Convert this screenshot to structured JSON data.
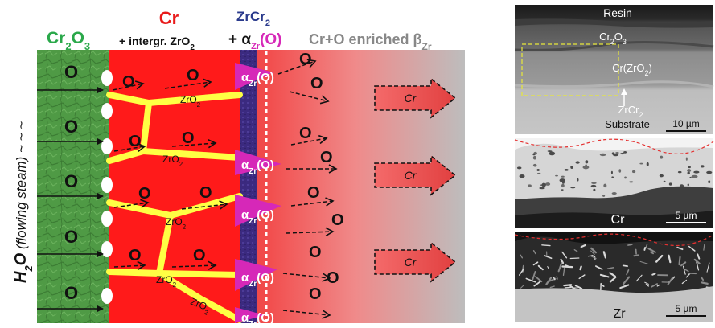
{
  "schematic": {
    "headers": {
      "oxide": {
        "main": "Cr",
        "sub": "2",
        "main2": "O",
        "sub2": "3"
      },
      "cr": {
        "line1": "Cr",
        "line2_prefix": "+ intergr. ZrO",
        "line2_sub": "2"
      },
      "zrcr2": {
        "main": "ZrCr",
        "sub": "2",
        "line2_prefix": "+ α",
        "line2_sub": "Zr",
        "line2_suffix": "(O)"
      },
      "enriched": {
        "main": "Cr+O enriched β",
        "sub": "Zr"
      }
    },
    "steam_label": {
      "prefix": "H",
      "sub": "2",
      "suffix": "O",
      "rest": " (flowing steam) ~ ~ ~"
    },
    "oxygen_label": "O",
    "zro2_label": {
      "main": "ZrO",
      "sub": "2"
    },
    "alpha_label": {
      "main": "α",
      "sub": "Zr",
      "suffix": "(O)"
    },
    "cr_arrow_label": "Cr",
    "colors": {
      "oxide": "#4f9a45",
      "cr_layer": "#ff1a1a",
      "zrcr2": "#3b2a80",
      "grain_boundary": "#ffff44",
      "alpha": "#d628b8",
      "header_oxide": "#2aa84a",
      "header_cr": "#e81a1a",
      "header_zrcr2": "#2a3a8c",
      "header_alpha": "#d628b8",
      "header_enriched": "#888888"
    }
  },
  "micrographs": {
    "top": {
      "labels": {
        "resin": "Resin",
        "oxide": {
          "main": "Cr",
          "sub": "2",
          "main2": "O",
          "sub2": "3"
        },
        "cr_zro2": {
          "main": "Cr(ZrO",
          "sub": "2",
          "suffix": ")"
        },
        "zrcr2": {
          "main": "ZrCr",
          "sub": "2"
        },
        "substrate": "Substrate"
      },
      "scale": "10 µm"
    },
    "middle": {
      "label": "Cr",
      "scale": "5 µm"
    },
    "bottom": {
      "label": "Zr",
      "scale": "5 µm"
    }
  }
}
